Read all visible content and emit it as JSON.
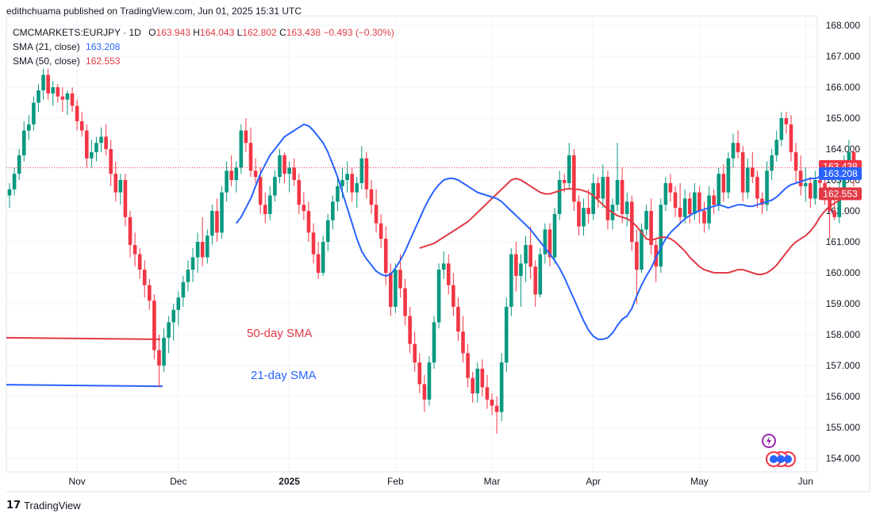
{
  "header": {
    "published": "edithchuama published on TradingView.com, Jun 01, 2025 15:31 UTC",
    "symbol_line": "CMCMARKETS:EURJPY · 1D",
    "ohlc": {
      "o_label": "O",
      "o": "163.943",
      "h_label": "H",
      "h": "164.043",
      "l_label": "L",
      "l": "162.802",
      "c_label": "C",
      "c": "163.438",
      "change": "−0.493 (−0.30%)"
    },
    "sma21_label": "SMA (21, close)",
    "sma21_value": "163.208",
    "sma50_label": "SMA (50, close)",
    "sma50_value": "162.553"
  },
  "annotations": {
    "sma50": "50-day SMA",
    "sma21": "21-day SMA"
  },
  "branding": {
    "logo": "17",
    "name": "TradingView"
  },
  "colors": {
    "up": "#089981",
    "down": "#f23645",
    "sma21": "#2962ff",
    "sma50": "#e03b45",
    "last_price": "#f23645",
    "grid": "#f0f3fa"
  },
  "price_tags": {
    "last": "163.438",
    "sma21": "163.208",
    "sma50": "162.553"
  },
  "chart_data": {
    "type": "candlestick",
    "yticks": [
      "168.000",
      "167.000",
      "166.000",
      "165.000",
      "164.000",
      "163.000",
      "162.000",
      "161.000",
      "160.000",
      "159.000",
      "158.000",
      "157.000",
      "156.000",
      "155.000",
      "154.000"
    ],
    "ylim": [
      153.3,
      168.5
    ],
    "xticks": [
      {
        "label": "Nov",
        "x": "2024-11-01"
      },
      {
        "label": "Dec",
        "x": "2024-12-02"
      },
      {
        "label": "2025",
        "x": "2025-01-02"
      },
      {
        "label": "Feb",
        "x": "2025-02-03"
      },
      {
        "label": "Mar",
        "x": "2025-03-03"
      },
      {
        "label": "Apr",
        "x": "2025-04-01"
      },
      {
        "label": "May",
        "x": "2025-05-01"
      },
      {
        "label": "Jun",
        "x": "2025-06-02"
      }
    ],
    "first_date": "2024-10-14",
    "candles": [
      [
        162.5,
        162.9,
        162.1,
        162.7
      ],
      [
        162.7,
        163.4,
        162.5,
        163.2
      ],
      [
        163.2,
        164.0,
        163.0,
        163.8
      ],
      [
        163.8,
        164.9,
        163.6,
        164.6
      ],
      [
        164.6,
        165.1,
        164.3,
        164.8
      ],
      [
        164.8,
        165.7,
        164.6,
        165.5
      ],
      [
        165.5,
        166.1,
        165.2,
        165.9
      ],
      [
        165.9,
        166.6,
        165.6,
        166.4
      ],
      [
        166.4,
        166.6,
        165.6,
        165.8
      ],
      [
        165.8,
        166.2,
        165.4,
        166.0
      ],
      [
        166.0,
        166.1,
        165.5,
        165.7
      ],
      [
        165.7,
        166.0,
        165.2,
        165.6
      ],
      [
        165.6,
        165.9,
        165.1,
        165.8
      ],
      [
        165.8,
        166.0,
        165.2,
        165.4
      ],
      [
        165.4,
        165.6,
        164.6,
        164.9
      ],
      [
        164.9,
        165.2,
        164.4,
        164.6
      ],
      [
        164.6,
        164.8,
        163.4,
        163.7
      ],
      [
        163.7,
        164.3,
        163.4,
        163.9
      ],
      [
        163.9,
        164.4,
        163.6,
        164.2
      ],
      [
        164.2,
        164.7,
        163.9,
        164.4
      ],
      [
        164.4,
        164.8,
        163.8,
        164.0
      ],
      [
        164.0,
        164.3,
        162.8,
        163.2
      ],
      [
        163.2,
        163.6,
        162.3,
        162.6
      ],
      [
        162.6,
        163.2,
        162.2,
        163.0
      ],
      [
        163.0,
        163.2,
        161.5,
        161.8
      ],
      [
        161.8,
        162.0,
        160.5,
        160.9
      ],
      [
        160.9,
        161.3,
        160.2,
        160.6
      ],
      [
        160.6,
        160.8,
        159.8,
        160.1
      ],
      [
        160.1,
        160.4,
        159.2,
        159.6
      ],
      [
        159.6,
        159.8,
        158.8,
        159.1
      ],
      [
        159.1,
        159.3,
        157.2,
        157.5
      ],
      [
        157.5,
        158.0,
        156.3,
        157.0
      ],
      [
        157.0,
        158.2,
        156.8,
        157.9
      ],
      [
        157.9,
        158.6,
        157.4,
        158.4
      ],
      [
        158.4,
        159.0,
        157.8,
        158.8
      ],
      [
        158.8,
        159.4,
        158.3,
        159.2
      ],
      [
        159.2,
        159.9,
        158.9,
        159.7
      ],
      [
        159.7,
        160.4,
        159.4,
        160.1
      ],
      [
        160.1,
        160.8,
        159.7,
        160.5
      ],
      [
        160.5,
        161.3,
        160.0,
        161.0
      ],
      [
        161.0,
        161.8,
        160.2,
        160.5
      ],
      [
        160.5,
        161.4,
        160.3,
        161.2
      ],
      [
        161.2,
        162.2,
        160.9,
        162.0
      ],
      [
        162.0,
        162.4,
        161.0,
        161.3
      ],
      [
        161.3,
        162.8,
        161.1,
        162.6
      ],
      [
        162.6,
        163.6,
        162.3,
        163.3
      ],
      [
        163.3,
        163.8,
        162.8,
        163.0
      ],
      [
        163.0,
        163.6,
        162.6,
        163.4
      ],
      [
        163.4,
        164.8,
        163.2,
        164.6
      ],
      [
        164.6,
        165.0,
        163.9,
        164.2
      ],
      [
        164.2,
        164.7,
        163.1,
        163.3
      ],
      [
        163.3,
        163.7,
        162.9,
        163.1
      ],
      [
        163.1,
        163.4,
        161.9,
        162.2
      ],
      [
        162.2,
        162.6,
        161.6,
        161.9
      ],
      [
        161.9,
        162.8,
        161.7,
        162.5
      ],
      [
        162.5,
        163.3,
        162.3,
        163.1
      ],
      [
        163.1,
        164.0,
        162.9,
        163.8
      ],
      [
        163.8,
        163.9,
        162.9,
        163.2
      ],
      [
        163.2,
        163.6,
        162.6,
        163.4
      ],
      [
        163.4,
        163.7,
        162.8,
        163.0
      ],
      [
        163.0,
        163.2,
        161.9,
        162.2
      ],
      [
        162.2,
        162.6,
        161.7,
        162.0
      ],
      [
        162.0,
        162.3,
        161.0,
        161.3
      ],
      [
        161.3,
        161.6,
        160.3,
        160.6
      ],
      [
        160.6,
        161.0,
        159.8,
        160.0
      ],
      [
        160.0,
        161.2,
        159.9,
        161.0
      ],
      [
        161.0,
        161.9,
        160.7,
        161.7
      ],
      [
        161.7,
        162.5,
        161.4,
        162.3
      ],
      [
        162.3,
        163.1,
        162.0,
        162.8
      ],
      [
        162.8,
        163.4,
        162.4,
        163.0
      ],
      [
        163.0,
        163.6,
        162.6,
        163.2
      ],
      [
        163.2,
        163.4,
        162.3,
        162.6
      ],
      [
        162.6,
        163.1,
        162.1,
        162.9
      ],
      [
        162.9,
        164.1,
        162.7,
        163.7
      ],
      [
        163.7,
        163.9,
        162.4,
        162.7
      ],
      [
        162.7,
        163.0,
        161.9,
        162.2
      ],
      [
        162.2,
        162.7,
        161.3,
        161.6
      ],
      [
        161.6,
        161.9,
        160.8,
        161.1
      ],
      [
        161.1,
        161.5,
        159.6,
        160.0
      ],
      [
        160.0,
        160.3,
        158.6,
        158.9
      ],
      [
        158.9,
        160.3,
        158.7,
        160.1
      ],
      [
        160.1,
        160.6,
        159.2,
        159.5
      ],
      [
        159.5,
        159.8,
        158.3,
        158.6
      ],
      [
        158.6,
        158.9,
        157.4,
        157.7
      ],
      [
        157.7,
        158.1,
        156.8,
        157.1
      ],
      [
        157.1,
        157.4,
        156.1,
        156.4
      ],
      [
        156.4,
        156.7,
        155.5,
        155.9
      ],
      [
        155.9,
        157.3,
        155.7,
        157.1
      ],
      [
        157.1,
        158.6,
        156.9,
        158.4
      ],
      [
        158.4,
        160.3,
        158.2,
        160.1
      ],
      [
        160.1,
        160.7,
        159.8,
        160.3
      ],
      [
        160.3,
        160.6,
        159.3,
        159.6
      ],
      [
        159.6,
        160.0,
        158.6,
        158.9
      ],
      [
        158.9,
        159.2,
        157.8,
        158.1
      ],
      [
        158.1,
        158.6,
        157.1,
        157.4
      ],
      [
        157.4,
        157.7,
        156.3,
        156.6
      ],
      [
        156.6,
        156.8,
        155.8,
        156.1
      ],
      [
        156.1,
        157.1,
        155.8,
        156.9
      ],
      [
        156.9,
        157.2,
        156.0,
        156.3
      ],
      [
        156.3,
        156.7,
        155.6,
        155.9
      ],
      [
        155.9,
        156.1,
        155.4,
        155.7
      ],
      [
        155.7,
        156.0,
        154.8,
        155.5
      ],
      [
        155.5,
        157.4,
        155.2,
        157.1
      ],
      [
        157.1,
        159.2,
        156.8,
        158.9
      ],
      [
        158.9,
        160.8,
        158.6,
        160.6
      ],
      [
        160.6,
        161.0,
        159.4,
        159.9
      ],
      [
        159.9,
        160.6,
        158.9,
        160.3
      ],
      [
        160.3,
        161.2,
        159.7,
        160.9
      ],
      [
        160.9,
        161.5,
        159.8,
        160.2
      ],
      [
        160.2,
        160.4,
        158.9,
        159.3
      ],
      [
        159.3,
        160.8,
        159.2,
        160.6
      ],
      [
        160.6,
        161.6,
        160.3,
        161.4
      ],
      [
        161.4,
        161.6,
        160.2,
        160.5
      ],
      [
        160.5,
        162.1,
        160.3,
        161.9
      ],
      [
        161.9,
        163.3,
        161.7,
        163.0
      ],
      [
        163.0,
        163.2,
        162.6,
        162.9
      ],
      [
        162.9,
        164.2,
        162.7,
        163.8
      ],
      [
        163.8,
        164.0,
        162.0,
        162.3
      ],
      [
        162.3,
        162.5,
        161.2,
        161.5
      ],
      [
        161.5,
        162.4,
        161.2,
        162.1
      ],
      [
        162.1,
        162.7,
        161.6,
        161.9
      ],
      [
        161.9,
        163.2,
        161.7,
        162.9
      ],
      [
        162.9,
        163.1,
        162.1,
        162.4
      ],
      [
        162.4,
        163.5,
        162.1,
        163.1
      ],
      [
        163.1,
        163.3,
        161.4,
        161.7
      ],
      [
        161.7,
        162.4,
        161.4,
        162.2
      ],
      [
        162.2,
        164.2,
        162.0,
        163.0
      ],
      [
        163.0,
        163.4,
        161.6,
        161.9
      ],
      [
        161.9,
        162.6,
        161.5,
        162.3
      ],
      [
        162.3,
        162.5,
        160.7,
        161.0
      ],
      [
        161.0,
        161.4,
        159.0,
        160.1
      ],
      [
        160.1,
        161.6,
        160.0,
        161.4
      ],
      [
        161.4,
        162.2,
        161.2,
        162.0
      ],
      [
        162.0,
        162.4,
        160.6,
        160.9
      ],
      [
        160.9,
        161.1,
        159.7,
        160.2
      ],
      [
        160.2,
        162.4,
        160.0,
        162.2
      ],
      [
        162.2,
        163.1,
        162.0,
        162.9
      ],
      [
        162.9,
        163.2,
        162.3,
        162.6
      ],
      [
        162.6,
        162.8,
        161.8,
        162.1
      ],
      [
        162.1,
        162.9,
        161.6,
        161.8
      ],
      [
        161.8,
        162.7,
        161.6,
        162.4
      ],
      [
        162.4,
        162.6,
        161.6,
        161.9
      ],
      [
        161.9,
        162.9,
        161.7,
        162.6
      ],
      [
        162.6,
        162.8,
        161.6,
        162.0
      ],
      [
        162.0,
        162.3,
        161.3,
        161.6
      ],
      [
        161.6,
        162.8,
        161.4,
        162.5
      ],
      [
        162.5,
        162.7,
        161.9,
        162.2
      ],
      [
        162.2,
        163.4,
        162.0,
        163.2
      ],
      [
        163.2,
        163.5,
        162.3,
        162.6
      ],
      [
        162.6,
        163.9,
        162.4,
        163.7
      ],
      [
        163.7,
        164.5,
        163.4,
        164.2
      ],
      [
        164.2,
        164.6,
        163.7,
        163.9
      ],
      [
        163.9,
        164.1,
        162.3,
        162.6
      ],
      [
        162.6,
        163.7,
        162.4,
        163.4
      ],
      [
        163.4,
        163.9,
        162.9,
        163.1
      ],
      [
        163.1,
        163.3,
        162.1,
        162.4
      ],
      [
        162.4,
        162.6,
        161.9,
        162.2
      ],
      [
        162.2,
        163.6,
        162.0,
        163.3
      ],
      [
        163.3,
        164.0,
        163.0,
        163.8
      ],
      [
        163.8,
        164.6,
        163.6,
        164.3
      ],
      [
        164.3,
        165.2,
        164.1,
        165.0
      ],
      [
        165.0,
        165.2,
        164.5,
        164.8
      ],
      [
        164.8,
        165.1,
        163.6,
        163.9
      ],
      [
        163.9,
        164.2,
        162.9,
        163.3
      ],
      [
        163.3,
        163.8,
        162.5,
        162.8
      ],
      [
        162.8,
        163.4,
        162.3,
        162.9
      ],
      [
        162.9,
        163.1,
        162.1,
        162.4
      ],
      [
        162.4,
        163.3,
        162.2,
        163.0
      ],
      [
        163.0,
        163.6,
        162.6,
        162.9
      ],
      [
        162.9,
        163.2,
        162.2,
        162.5
      ],
      [
        162.5,
        162.8,
        161.1,
        162.0
      ],
      [
        162.0,
        162.4,
        161.7,
        161.8
      ],
      [
        161.8,
        163.0,
        161.6,
        162.7
      ],
      [
        162.7,
        163.8,
        162.5,
        163.6
      ],
      [
        163.6,
        164.3,
        163.5,
        163.9
      ],
      [
        163.9,
        164.0,
        162.8,
        163.4
      ]
    ],
    "sma21": [
      161.6,
      161.8,
      162.1,
      162.4,
      162.8,
      163.2,
      163.5,
      163.8,
      164.0,
      164.2,
      164.4,
      164.5,
      164.6,
      164.7,
      164.8,
      164.75,
      164.6,
      164.4,
      164.2,
      163.9,
      163.5,
      163.1,
      162.6,
      162.1,
      161.6,
      161.1,
      160.7,
      160.45,
      160.25,
      160.05,
      159.95,
      159.9,
      159.95,
      160.15,
      160.4,
      160.7,
      161.05,
      161.4,
      161.75,
      162.1,
      162.4,
      162.65,
      162.85,
      163.0,
      163.05,
      163.05,
      163.0,
      162.9,
      162.8,
      162.7,
      162.6,
      162.55,
      162.5,
      162.45,
      162.4,
      162.3,
      162.15,
      162.0,
      161.85,
      161.7,
      161.55,
      161.4,
      161.2,
      161.0,
      160.8,
      160.6,
      160.4,
      160.15,
      159.85,
      159.5,
      159.15,
      158.8,
      158.45,
      158.15,
      157.95,
      157.85,
      157.85,
      157.9,
      158.05,
      158.3,
      158.5,
      158.6,
      158.85,
      159.25,
      159.6,
      159.9,
      160.15,
      160.5,
      160.8,
      161.1,
      161.3,
      161.45,
      161.6,
      161.75,
      161.85,
      161.95,
      162.0,
      162.05,
      162.1,
      162.15,
      162.2,
      162.15,
      162.1,
      162.15,
      162.2,
      162.2,
      162.15,
      162.15,
      162.2,
      162.25,
      162.3,
      162.35,
      162.45,
      162.6,
      162.75,
      162.85,
      162.9,
      162.95,
      163.0,
      163.05,
      163.05,
      163.1,
      163.2,
      163.25,
      163.3,
      163.25,
      163.2,
      163.25,
      163.21
    ],
    "sma50": [
      160.8,
      160.85,
      160.9,
      160.95,
      161.05,
      161.15,
      161.25,
      161.35,
      161.45,
      161.55,
      161.65,
      161.8,
      161.95,
      162.1,
      162.25,
      162.4,
      162.55,
      162.7,
      162.85,
      163.0,
      163.05,
      163.0,
      162.9,
      162.8,
      162.7,
      162.6,
      162.55,
      162.55,
      162.6,
      162.65,
      162.7,
      162.72,
      162.7,
      162.7,
      162.65,
      162.6,
      162.5,
      162.35,
      162.2,
      162.05,
      161.95,
      161.85,
      161.8,
      161.75,
      161.65,
      161.5,
      161.3,
      161.1,
      161.05,
      161.1,
      161.15,
      161.15,
      161.1,
      161.0,
      160.85,
      160.7,
      160.5,
      160.35,
      160.2,
      160.1,
      160.05,
      160.0,
      160.0,
      160.0,
      160.0,
      160.05,
      160.1,
      160.1,
      160.05,
      160.0,
      159.95,
      159.95,
      160.0,
      160.1,
      160.25,
      160.45,
      160.65,
      160.85,
      161.0,
      161.1,
      161.2,
      161.35,
      161.55,
      161.8,
      162.0,
      162.15,
      162.25,
      162.35,
      162.45,
      162.5,
      162.55
    ]
  }
}
